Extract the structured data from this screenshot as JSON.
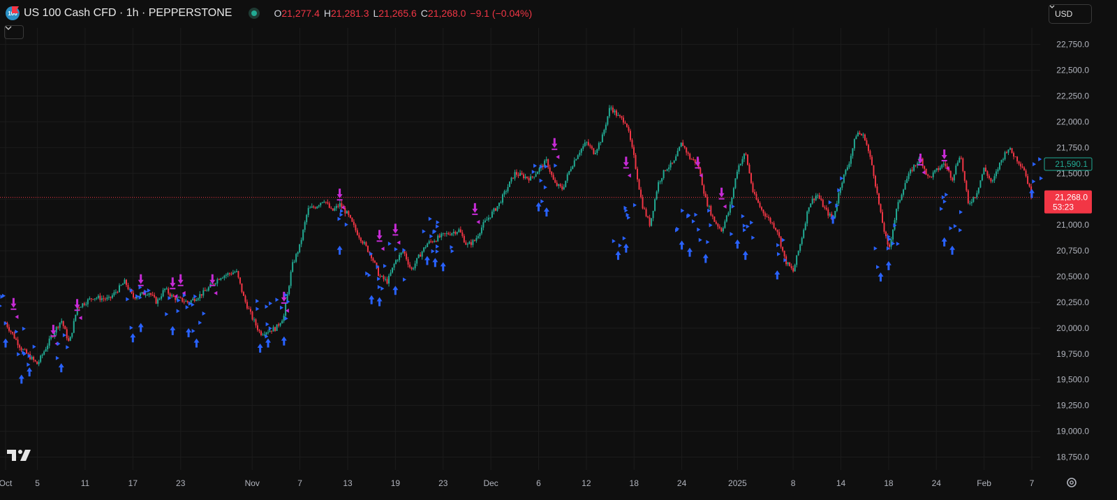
{
  "header": {
    "symbol_badge": "100",
    "title": "US 100 Cash CFD · 1h · PEPPERSTONE",
    "ohlc": [
      {
        "k": "O",
        "v": "21,277.4"
      },
      {
        "k": "H",
        "v": "21,281.3"
      },
      {
        "k": "L",
        "v": "21,265.6"
      },
      {
        "k": "C",
        "v": "21,268.0"
      }
    ],
    "change": "−9.1 (−0.04%)",
    "currency": "USD"
  },
  "icons": {
    "flag": "flag-icon",
    "live": "live-status-icon",
    "collapse": "chevron-down-icon",
    "logo": "tradingview-logo",
    "settings": "gear-icon"
  },
  "colors": {
    "background": "#0f0f0f",
    "grid": "#1c1c1c",
    "up": "#22ab94",
    "down": "#f23645",
    "buy_signal": "#2962ff",
    "sell_signal": "#c72bd6",
    "price_label_bg": "#f23645",
    "value_label": "#22ab94"
  },
  "chart_data": {
    "type": "candlestick",
    "timeframe": "1h",
    "y_ticks": [
      18750,
      19000,
      19250,
      19500,
      19750,
      20000,
      20250,
      20500,
      20750,
      21000,
      21250,
      21500,
      21750,
      22000,
      22250,
      22500,
      22750
    ],
    "y_tick_labels": [
      "18,750.0",
      "19,000.0",
      "19,250.0",
      "19,500.0",
      "19,750.0",
      "20,000.0",
      "20,250.0",
      "20,500.0",
      "20,750.0",
      "21,000.0",
      "21,250.0",
      "21,500.0",
      "21,750.0",
      "22,000.0",
      "22,250.0",
      "22,500.0",
      "22,750.0"
    ],
    "ylim": [
      18625,
      22910
    ],
    "x_labels": [
      {
        "t": 0,
        "label": "Oct"
      },
      {
        "t": 4,
        "label": "5"
      },
      {
        "t": 10,
        "label": "11"
      },
      {
        "t": 16,
        "label": "17"
      },
      {
        "t": 22,
        "label": "23"
      },
      {
        "t": 31,
        "label": "Nov"
      },
      {
        "t": 37,
        "label": "7"
      },
      {
        "t": 43,
        "label": "13"
      },
      {
        "t": 49,
        "label": "19"
      },
      {
        "t": 55,
        "label": "23"
      },
      {
        "t": 61,
        "label": "Dec"
      },
      {
        "t": 67,
        "label": "6"
      },
      {
        "t": 73,
        "label": "12"
      },
      {
        "t": 79,
        "label": "18"
      },
      {
        "t": 85,
        "label": "24"
      },
      {
        "t": 92,
        "label": "2025"
      },
      {
        "t": 99,
        "label": "8"
      },
      {
        "t": 105,
        "label": "14"
      },
      {
        "t": 111,
        "label": "18"
      },
      {
        "t": 117,
        "label": "24"
      },
      {
        "t": 123,
        "label": "Feb"
      },
      {
        "t": 129,
        "label": "7"
      }
    ],
    "t_range": [
      0,
      133.5
    ],
    "price_path": [
      [
        0,
        20050
      ],
      [
        2,
        19800
      ],
      [
        4,
        19650
      ],
      [
        6,
        19950
      ],
      [
        7,
        20080
      ],
      [
        8,
        19850
      ],
      [
        9,
        20200
      ],
      [
        11,
        20300
      ],
      [
        13,
        20280
      ],
      [
        15,
        20450
      ],
      [
        16,
        20300
      ],
      [
        18,
        20350
      ],
      [
        19,
        20250
      ],
      [
        20,
        20380
      ],
      [
        21,
        20300
      ],
      [
        23,
        20250
      ],
      [
        25,
        20350
      ],
      [
        27,
        20500
      ],
      [
        29,
        20550
      ],
      [
        30,
        20280
      ],
      [
        31,
        20100
      ],
      [
        32,
        19950
      ],
      [
        34,
        20000
      ],
      [
        35,
        20120
      ],
      [
        36,
        20600
      ],
      [
        37,
        20800
      ],
      [
        38,
        21150
      ],
      [
        39,
        21180
      ],
      [
        40,
        21250
      ],
      [
        41,
        21130
      ],
      [
        42,
        21200
      ],
      [
        43,
        21100
      ],
      [
        44,
        20950
      ],
      [
        46,
        20700
      ],
      [
        47,
        20500
      ],
      [
        48,
        20450
      ],
      [
        49,
        20650
      ],
      [
        50,
        20750
      ],
      [
        51,
        20560
      ],
      [
        52,
        20700
      ],
      [
        53,
        20820
      ],
      [
        55,
        20900
      ],
      [
        57,
        20950
      ],
      [
        58,
        20800
      ],
      [
        59,
        20850
      ],
      [
        60,
        21000
      ],
      [
        61,
        21100
      ],
      [
        62,
        21200
      ],
      [
        63,
        21350
      ],
      [
        64,
        21500
      ],
      [
        66,
        21450
      ],
      [
        68,
        21620
      ],
      [
        69,
        21400
      ],
      [
        70,
        21350
      ],
      [
        71,
        21550
      ],
      [
        72,
        21700
      ],
      [
        73,
        21800
      ],
      [
        74,
        21700
      ],
      [
        75,
        21850
      ],
      [
        76,
        22150
      ],
      [
        77,
        22050
      ],
      [
        78,
        22000
      ],
      [
        79,
        21650
      ],
      [
        80,
        21200
      ],
      [
        81,
        21000
      ],
      [
        82,
        21400
      ],
      [
        83,
        21550
      ],
      [
        84,
        21600
      ],
      [
        85,
        21800
      ],
      [
        86,
        21650
      ],
      [
        87,
        21600
      ],
      [
        88,
        21250
      ],
      [
        89,
        21050
      ],
      [
        90,
        20950
      ],
      [
        91,
        21150
      ],
      [
        92,
        21550
      ],
      [
        93,
        21700
      ],
      [
        94,
        21300
      ],
      [
        95,
        21150
      ],
      [
        96,
        21050
      ],
      [
        97,
        20950
      ],
      [
        98,
        20650
      ],
      [
        99,
        20550
      ],
      [
        100,
        20850
      ],
      [
        101,
        21200
      ],
      [
        102,
        21300
      ],
      [
        103,
        21150
      ],
      [
        104,
        21050
      ],
      [
        105,
        21400
      ],
      [
        106,
        21600
      ],
      [
        107,
        21900
      ],
      [
        108,
        21850
      ],
      [
        109,
        21550
      ],
      [
        110,
        21100
      ],
      [
        111,
        20750
      ],
      [
        112,
        21150
      ],
      [
        113,
        21400
      ],
      [
        114,
        21550
      ],
      [
        115,
        21650
      ],
      [
        116,
        21450
      ],
      [
        118,
        21600
      ],
      [
        119,
        21450
      ],
      [
        120,
        21700
      ],
      [
        121,
        21200
      ],
      [
        122,
        21300
      ],
      [
        123,
        21550
      ],
      [
        124,
        21400
      ],
      [
        125,
        21600
      ],
      [
        126,
        21750
      ],
      [
        127,
        21650
      ],
      [
        128,
        21550
      ],
      [
        129,
        21268
      ]
    ],
    "sell_signals": [
      [
        1,
        20170
      ],
      [
        6,
        19910
      ],
      [
        9,
        20160
      ],
      [
        17,
        20400
      ],
      [
        21,
        20370
      ],
      [
        22,
        20400
      ],
      [
        26,
        20400
      ],
      [
        35,
        20230
      ],
      [
        42,
        21230
      ],
      [
        47,
        20830
      ],
      [
        49,
        20890
      ],
      [
        59,
        21090
      ],
      [
        69,
        21720
      ],
      [
        78,
        21540
      ],
      [
        87,
        21540
      ],
      [
        90,
        21240
      ],
      [
        115,
        21570
      ],
      [
        118,
        21610
      ]
    ],
    "buy_signals": [
      [
        0,
        19900
      ],
      [
        2,
        19550
      ],
      [
        3,
        19620
      ],
      [
        7,
        19660
      ],
      [
        16,
        19950
      ],
      [
        17,
        20050
      ],
      [
        21,
        20020
      ],
      [
        23,
        20000
      ],
      [
        24,
        19900
      ],
      [
        32,
        19850
      ],
      [
        33,
        19900
      ],
      [
        35,
        19920
      ],
      [
        42,
        20800
      ],
      [
        46,
        20320
      ],
      [
        47,
        20300
      ],
      [
        49,
        20410
      ],
      [
        53,
        20700
      ],
      [
        54,
        20680
      ],
      [
        55,
        20640
      ],
      [
        67,
        21220
      ],
      [
        68,
        21170
      ],
      [
        77,
        20750
      ],
      [
        78,
        20820
      ],
      [
        85,
        20850
      ],
      [
        86,
        20780
      ],
      [
        88,
        20720
      ],
      [
        92,
        20860
      ],
      [
        93,
        20750
      ],
      [
        97,
        20560
      ],
      [
        104,
        21100
      ],
      [
        110,
        20540
      ],
      [
        111,
        20650
      ],
      [
        118,
        20880
      ],
      [
        119,
        20800
      ],
      [
        129,
        21350
      ]
    ],
    "horizontal_line": 21268,
    "current_price_label": "21,268.0",
    "countdown": "53:23",
    "marker_value_label": "21,590.1",
    "marker_value": 21590.1
  }
}
